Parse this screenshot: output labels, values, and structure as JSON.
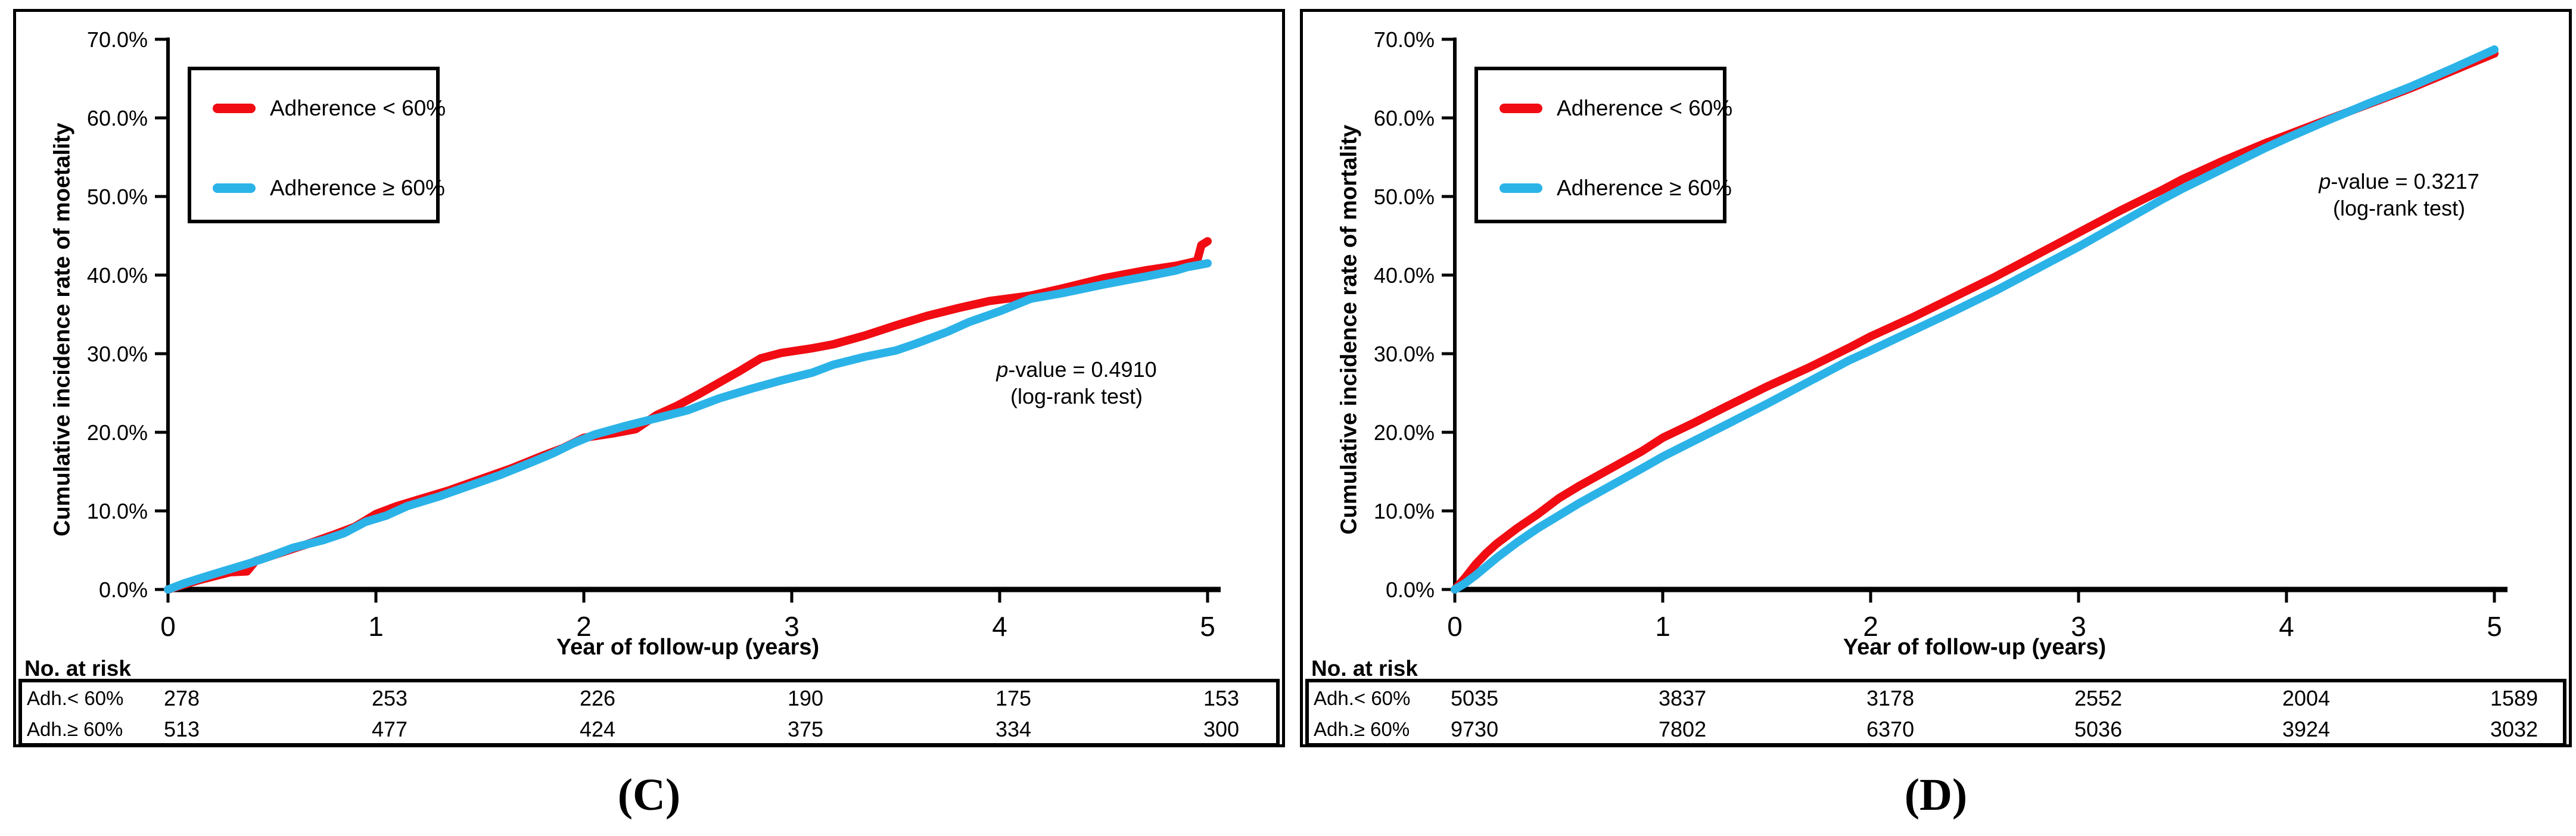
{
  "chart_data": [
    {
      "type": "line",
      "panel_label": "(C)",
      "ylabel": "Cumulative incidence rate of moetality",
      "xlabel": "Year of follow-up (years)",
      "ylim": [
        0,
        70
      ],
      "xlim": [
        0,
        5
      ],
      "grid": false,
      "legend_position": "upper-left-boxed",
      "y_ticks": [
        "0.0%",
        "10.0%",
        "20.0%",
        "30.0%",
        "40.0%",
        "50.0%",
        "60.0%",
        "70.0%"
      ],
      "x_ticks": [
        "0",
        "1",
        "2",
        "3",
        "4",
        "5"
      ],
      "annotation": {
        "p_italic": "p",
        "p_rest": "-value = 0.4910",
        "line2": "(log-rank test)"
      },
      "legend": [
        {
          "name": "Adherence < 60%",
          "color": "#F00C12"
        },
        {
          "name": "Adherence ≥ 60%",
          "color": "#2BB3E8"
        }
      ],
      "series": [
        {
          "name": "Adherence < 60%",
          "color": "#F00C12",
          "points": [
            [
              0,
              0
            ],
            [
              0.05,
              0.4
            ],
            [
              0.15,
              1.2
            ],
            [
              0.3,
              2.2
            ],
            [
              0.38,
              2.3
            ],
            [
              0.42,
              3.6
            ],
            [
              0.5,
              4.3
            ],
            [
              0.65,
              5.6
            ],
            [
              0.8,
              7.0
            ],
            [
              0.9,
              8.0
            ],
            [
              1.0,
              9.6
            ],
            [
              1.1,
              10.6
            ],
            [
              1.2,
              11.4
            ],
            [
              1.35,
              12.6
            ],
            [
              1.5,
              14.0
            ],
            [
              1.65,
              15.4
            ],
            [
              1.8,
              17.0
            ],
            [
              1.9,
              18.0
            ],
            [
              2.0,
              19.3
            ],
            [
              2.15,
              19.9
            ],
            [
              2.25,
              20.4
            ],
            [
              2.35,
              22.2
            ],
            [
              2.45,
              23.4
            ],
            [
              2.55,
              24.8
            ],
            [
              2.65,
              26.3
            ],
            [
              2.75,
              27.8
            ],
            [
              2.85,
              29.4
            ],
            [
              2.95,
              30.1
            ],
            [
              3.1,
              30.7
            ],
            [
              3.2,
              31.2
            ],
            [
              3.35,
              32.3
            ],
            [
              3.5,
              33.6
            ],
            [
              3.65,
              34.8
            ],
            [
              3.8,
              35.8
            ],
            [
              3.95,
              36.7
            ],
            [
              4.15,
              37.4
            ],
            [
              4.3,
              38.3
            ],
            [
              4.5,
              39.6
            ],
            [
              4.7,
              40.6
            ],
            [
              4.85,
              41.2
            ],
            [
              4.9,
              41.5
            ],
            [
              4.95,
              41.8
            ],
            [
              4.97,
              43.8
            ],
            [
              5.0,
              44.3
            ]
          ]
        },
        {
          "name": "Adherence ≥ 60%",
          "color": "#2BB3E8",
          "points": [
            [
              0,
              0
            ],
            [
              0.08,
              0.8
            ],
            [
              0.2,
              1.8
            ],
            [
              0.3,
              2.6
            ],
            [
              0.4,
              3.4
            ],
            [
              0.5,
              4.3
            ],
            [
              0.6,
              5.3
            ],
            [
              0.75,
              6.3
            ],
            [
              0.85,
              7.2
            ],
            [
              0.95,
              8.6
            ],
            [
              1.05,
              9.4
            ],
            [
              1.15,
              10.6
            ],
            [
              1.3,
              11.8
            ],
            [
              1.45,
              13.2
            ],
            [
              1.6,
              14.6
            ],
            [
              1.75,
              16.2
            ],
            [
              1.85,
              17.3
            ],
            [
              1.95,
              18.6
            ],
            [
              2.05,
              19.7
            ],
            [
              2.2,
              20.8
            ],
            [
              2.35,
              21.8
            ],
            [
              2.5,
              22.8
            ],
            [
              2.65,
              24.3
            ],
            [
              2.8,
              25.5
            ],
            [
              2.95,
              26.6
            ],
            [
              3.1,
              27.6
            ],
            [
              3.2,
              28.6
            ],
            [
              3.35,
              29.6
            ],
            [
              3.5,
              30.4
            ],
            [
              3.6,
              31.3
            ],
            [
              3.75,
              32.8
            ],
            [
              3.85,
              34.0
            ],
            [
              4.0,
              35.4
            ],
            [
              4.15,
              37.0
            ],
            [
              4.3,
              37.7
            ],
            [
              4.5,
              38.8
            ],
            [
              4.7,
              39.8
            ],
            [
              4.85,
              40.6
            ],
            [
              4.9,
              41.0
            ],
            [
              5.0,
              41.5
            ]
          ]
        }
      ],
      "risk_table": {
        "header": "No. at risk",
        "rows": [
          {
            "label": "Adh.< 60%",
            "values": [
              "278",
              "253",
              "226",
              "190",
              "175",
              "153"
            ]
          },
          {
            "label": "Adh.≥ 60%",
            "values": [
              "513",
              "477",
              "424",
              "375",
              "334",
              "300"
            ]
          }
        ]
      }
    },
    {
      "type": "line",
      "panel_label": "(D)",
      "ylabel": "Cumulative incidence rate of mortality",
      "xlabel": "Year of follow-up (years)",
      "ylim": [
        0,
        70
      ],
      "xlim": [
        0,
        5
      ],
      "grid": false,
      "legend_position": "upper-left-boxed",
      "y_ticks": [
        "0.0%",
        "10.0%",
        "20.0%",
        "30.0%",
        "40.0%",
        "50.0%",
        "60.0%",
        "70.0%"
      ],
      "x_ticks": [
        "0",
        "1",
        "2",
        "3",
        "4",
        "5"
      ],
      "annotation": {
        "p_italic": "p",
        "p_rest": "-value = 0.3217",
        "line2": "(log-rank test)"
      },
      "legend": [
        {
          "name": "Adherence < 60%",
          "color": "#F00C12"
        },
        {
          "name": "Adherence ≥ 60%",
          "color": "#2BB3E8"
        }
      ],
      "series": [
        {
          "name": "Adherence < 60%",
          "color": "#F00C12",
          "points": [
            [
              0,
              0
            ],
            [
              0.05,
              1.5
            ],
            [
              0.1,
              3.2
            ],
            [
              0.15,
              4.6
            ],
            [
              0.2,
              5.8
            ],
            [
              0.3,
              7.8
            ],
            [
              0.4,
              9.6
            ],
            [
              0.5,
              11.6
            ],
            [
              0.6,
              13.2
            ],
            [
              0.75,
              15.4
            ],
            [
              0.9,
              17.6
            ],
            [
              1.0,
              19.3
            ],
            [
              1.15,
              21.2
            ],
            [
              1.3,
              23.2
            ],
            [
              1.5,
              25.8
            ],
            [
              1.7,
              28.2
            ],
            [
              1.9,
              30.8
            ],
            [
              2.0,
              32.2
            ],
            [
              2.2,
              34.6
            ],
            [
              2.4,
              37.2
            ],
            [
              2.6,
              39.8
            ],
            [
              2.8,
              42.6
            ],
            [
              3.0,
              45.4
            ],
            [
              3.2,
              48.2
            ],
            [
              3.4,
              50.8
            ],
            [
              3.5,
              52.2
            ],
            [
              3.7,
              54.6
            ],
            [
              3.9,
              56.8
            ],
            [
              4.0,
              57.8
            ],
            [
              4.2,
              59.8
            ],
            [
              4.4,
              61.8
            ],
            [
              4.6,
              63.8
            ],
            [
              4.8,
              66.0
            ],
            [
              5.0,
              68.2
            ]
          ]
        },
        {
          "name": "Adherence ≥ 60%",
          "color": "#2BB3E8",
          "points": [
            [
              0,
              0
            ],
            [
              0.05,
              0.8
            ],
            [
              0.1,
              1.8
            ],
            [
              0.15,
              2.9
            ],
            [
              0.2,
              4.0
            ],
            [
              0.3,
              6.0
            ],
            [
              0.4,
              7.8
            ],
            [
              0.5,
              9.4
            ],
            [
              0.6,
              11.0
            ],
            [
              0.75,
              13.2
            ],
            [
              0.9,
              15.4
            ],
            [
              1.0,
              16.9
            ],
            [
              1.15,
              18.9
            ],
            [
              1.3,
              20.9
            ],
            [
              1.5,
              23.6
            ],
            [
              1.7,
              26.4
            ],
            [
              1.9,
              29.2
            ],
            [
              2.0,
              30.4
            ],
            [
              2.2,
              32.9
            ],
            [
              2.4,
              35.4
            ],
            [
              2.6,
              38.0
            ],
            [
              2.8,
              40.8
            ],
            [
              3.0,
              43.6
            ],
            [
              3.2,
              46.6
            ],
            [
              3.4,
              49.6
            ],
            [
              3.5,
              51.0
            ],
            [
              3.7,
              53.6
            ],
            [
              3.9,
              56.2
            ],
            [
              4.0,
              57.4
            ],
            [
              4.2,
              59.7
            ],
            [
              4.4,
              61.9
            ],
            [
              4.6,
              64.0
            ],
            [
              4.8,
              66.3
            ],
            [
              5.0,
              68.7
            ]
          ]
        }
      ],
      "risk_table": {
        "header": "No. at risk",
        "rows": [
          {
            "label": "Adh.< 60%",
            "values": [
              "5035",
              "3837",
              "3178",
              "2552",
              "2004",
              "1589"
            ]
          },
          {
            "label": "Adh.≥ 60%",
            "values": [
              "9730",
              "7802",
              "6370",
              "5036",
              "3924",
              "3032"
            ]
          }
        ]
      }
    }
  ]
}
